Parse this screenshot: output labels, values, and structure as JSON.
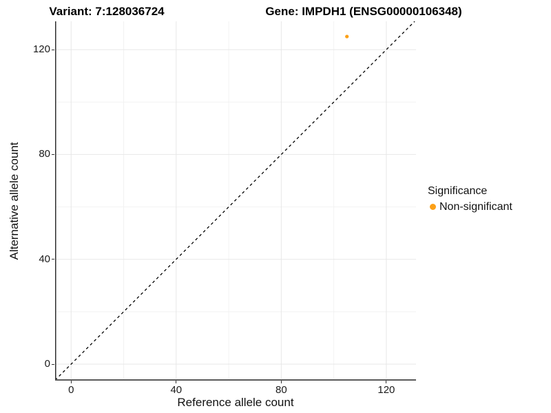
{
  "titles": {
    "left": "Variant: 7:128036724",
    "right": "Gene: IMPDH1 (ENSG00000106348)"
  },
  "axes": {
    "x": {
      "label": "Reference allele count",
      "ticks": [
        0,
        40,
        80,
        120
      ]
    },
    "y": {
      "label": "Alternative allele count",
      "ticks": [
        0,
        40,
        80,
        120
      ]
    }
  },
  "legend": {
    "title": "Significance",
    "items": [
      {
        "label": "Non-significant",
        "color": "#FCA017"
      }
    ]
  },
  "colors": {
    "point": "#FCA017",
    "grid_major": "#e7e7e7",
    "grid_minor": "#f2f2f2",
    "axis_line_bottom": "#5a5a5a",
    "axis_line_left": "#2e2e2e",
    "reference_line": "#000000"
  },
  "chart_data": {
    "type": "scatter",
    "title_left": "Variant: 7:128036724",
    "title_right": "Gene: IMPDH1 (ENSG00000106348)",
    "xlabel": "Reference allele count",
    "ylabel": "Alternative allele count",
    "xlim": [
      -6.1,
      131.3
    ],
    "ylim": [
      -6.3,
      130.8
    ],
    "x_ticks": [
      0,
      40,
      80,
      120
    ],
    "y_ticks": [
      0,
      40,
      80,
      120
    ],
    "x_minor_ticks": [
      20,
      60,
      100
    ],
    "y_minor_ticks": [
      20,
      60,
      100
    ],
    "grid": "major+minor",
    "legend_position": "right",
    "series": [
      {
        "name": "Non-significant",
        "color": "#FCA017",
        "points": [
          {
            "x": 105,
            "y": 125
          }
        ]
      }
    ],
    "reference_line": {
      "type": "identity y=x",
      "style": "dashed",
      "color": "#000000"
    }
  }
}
